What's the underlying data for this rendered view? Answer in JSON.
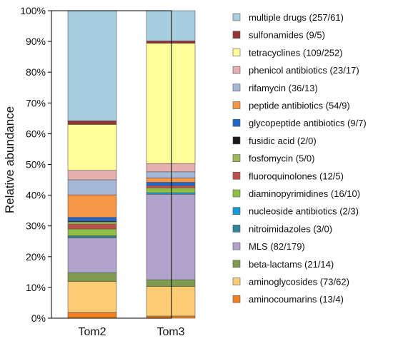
{
  "chart_data": {
    "type": "bar",
    "stacked": true,
    "percent_stacked": true,
    "title": "",
    "xlabel": "",
    "ylabel": "Relative abundance",
    "ylim": [
      0,
      100
    ],
    "yticks": [
      "0%",
      "10%",
      "20%",
      "30%",
      "40%",
      "50%",
      "60%",
      "70%",
      "80%",
      "90%",
      "100%"
    ],
    "grid": false,
    "legend_position": "right",
    "categories": [
      "Tom2",
      "Tom3"
    ],
    "series": [
      {
        "name": "aminocoumarins (13/4)",
        "color": "#f07f22",
        "values": [
          1.9,
          0.7
        ]
      },
      {
        "name": "aminoglycosides (73/62)",
        "color": "#fdcd73",
        "values": [
          10.0,
          9.6
        ]
      },
      {
        "name": "beta-lactams (21/14)",
        "color": "#7f9a4f",
        "values": [
          2.9,
          2.2
        ]
      },
      {
        "name": "MLS (82/179)",
        "color": "#b0a4cd",
        "values": [
          11.3,
          27.8
        ]
      },
      {
        "name": "nitroimidazoles (3/0)",
        "color": "#31869b",
        "values": [
          0.4,
          0.0
        ]
      },
      {
        "name": "nucleoside antibiotics (2/3)",
        "color": "#149bd6",
        "values": [
          0.3,
          0.5
        ]
      },
      {
        "name": "diaminopyrimidines (16/10)",
        "color": "#8fbf45",
        "values": [
          2.2,
          1.5
        ]
      },
      {
        "name": "fluoroquinolones (12/5)",
        "color": "#c0504d",
        "values": [
          1.6,
          0.8
        ]
      },
      {
        "name": "fosfomycin (5/0)",
        "color": "#9bbb59",
        "values": [
          0.7,
          0.0
        ]
      },
      {
        "name": "fusidic acid (2/0)",
        "color": "#1a1a1a",
        "values": [
          0.3,
          0.0
        ]
      },
      {
        "name": "glycopeptide antibiotics (9/7)",
        "color": "#1f66c9",
        "values": [
          1.2,
          1.1
        ]
      },
      {
        "name": "peptide antibiotics (54/9)",
        "color": "#f79646",
        "values": [
          7.3,
          1.4
        ]
      },
      {
        "name": "rifamycin (36/13)",
        "color": "#a5b8d7",
        "values": [
          4.9,
          2.0
        ]
      },
      {
        "name": "phenicol antibiotics (23/17)",
        "color": "#e6b0b0",
        "values": [
          3.1,
          2.7
        ]
      },
      {
        "name": "tetracyclines (109/252)",
        "color": "#ffff99",
        "values": [
          14.9,
          39.1
        ]
      },
      {
        "name": "sulfonamides (9/5)",
        "color": "#943634",
        "values": [
          1.2,
          0.8
        ]
      },
      {
        "name": "multiple drugs (257/61)",
        "color": "#a8cfdf",
        "values": [
          35.8,
          9.8
        ]
      }
    ]
  }
}
